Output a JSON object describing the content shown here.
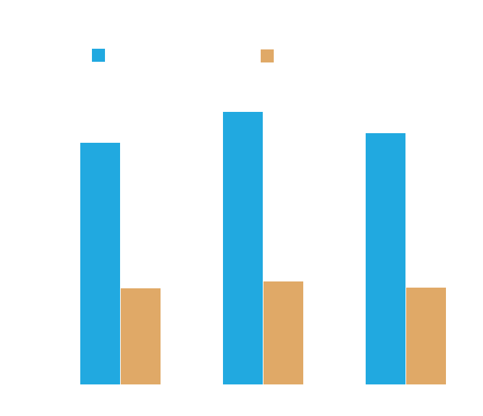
{
  "chart_data": {
    "type": "bar",
    "title": "",
    "xlabel": "",
    "ylabel": "",
    "categories": [
      "",
      "",
      ""
    ],
    "series": [
      {
        "name": "",
        "color": "#21a9e0",
        "values": [
          352,
          397,
          366
        ]
      },
      {
        "name": "",
        "color": "#e0a967",
        "values": [
          140,
          150,
          141
        ]
      }
    ],
    "ylim": [
      0,
      400
    ],
    "grid": false,
    "legend": "top"
  }
}
